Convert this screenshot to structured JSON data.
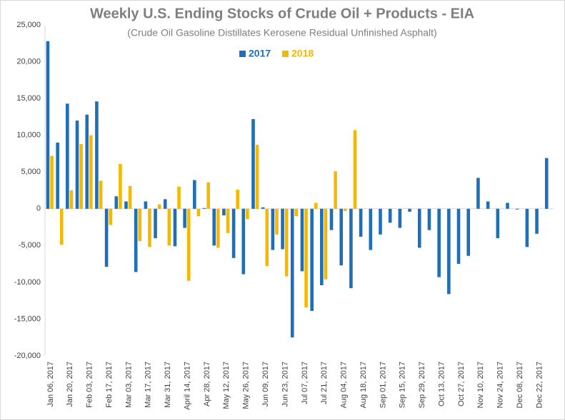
{
  "chart_data": {
    "type": "bar",
    "title": "Weekly U.S. Ending Stocks of Crude Oil + Products - EIA",
    "subtitle": "(Crude Oil Gasoline Distillates Kerosene Residual Unfinished Asphalt)",
    "categories": [
      "Jan 06, 2017",
      null,
      "Jan 20, 2017",
      null,
      "Feb 03, 2017",
      null,
      "Feb 17, 2017",
      null,
      "Mar 03, 2017",
      null,
      "Mar 17, 2017",
      null,
      "Mar 31, 2017",
      null,
      "April 14, 2017",
      null,
      "Apr 28, 2017",
      null,
      "May 12, 2017",
      null,
      "May 26, 2017",
      null,
      "Jun 09, 2017",
      null,
      "Jun 23, 2017",
      null,
      "Jul 07, 2017",
      null,
      "Jul 21, 2017",
      null,
      "Aug 04, 2017",
      null,
      "Aug 18, 2017",
      null,
      "Sep 01, 2017",
      null,
      "Sep 15, 2017",
      null,
      "Sep 29, 2017",
      null,
      "Oct 13, 2017",
      null,
      "Oct 27, 2017",
      null,
      "Nov 10, 2017",
      null,
      "Nov 24, 2017",
      null,
      "Dec 08, 2017",
      null,
      "Dec 22, 2017",
      null
    ],
    "series": [
      {
        "name": "2017",
        "color": "#1f6fb8",
        "values": [
          22800,
          9000,
          14300,
          12000,
          12800,
          14600,
          -7900,
          1700,
          1000,
          -8600,
          1000,
          -4000,
          1300,
          -5100,
          -2600,
          3900,
          100,
          -5000,
          -900,
          -6700,
          -8900,
          12200,
          200,
          -5600,
          -5500,
          -17500,
          -8500,
          -13900,
          -10400,
          -2900,
          -7700,
          -10800,
          -3800,
          -5600,
          -3500,
          -1900,
          -2600,
          -400,
          -5300,
          -2900,
          -9300,
          -11600,
          -7500,
          -6400,
          4200,
          1000,
          -4000,
          800,
          -100,
          -5200,
          -3400,
          6900
        ]
      },
      {
        "name": "2018",
        "color": "#f5b800",
        "values": [
          7200,
          -4900,
          2500,
          8800,
          10000,
          3800,
          -2200,
          6100,
          3100,
          -4400,
          -5200,
          600,
          -5000,
          3000,
          -9800,
          -1000,
          3600,
          -5300,
          -3300,
          2600,
          -1400,
          8700,
          -7800,
          -3500,
          -9200,
          -1000,
          -13400,
          800,
          -9600,
          5100,
          -300,
          10700,
          null,
          null,
          null,
          null,
          null,
          null,
          null,
          null,
          null,
          null,
          null,
          null,
          null,
          null,
          null,
          null,
          null,
          null,
          null,
          null
        ]
      }
    ],
    "ylim": [
      -20000,
      25000
    ],
    "yticks": [
      {
        "value": -20000,
        "label": "-20,000"
      },
      {
        "value": -15000,
        "label": "-15,000"
      },
      {
        "value": -10000,
        "label": "-10,000"
      },
      {
        "value": -5000,
        "label": "-5,000"
      },
      0,
      {
        "value": 5000,
        "label": "5,000"
      },
      {
        "value": 10000,
        "label": "10,000"
      },
      {
        "value": 15000,
        "label": "15,000"
      },
      {
        "value": 20000,
        "label": "20,000"
      },
      {
        "value": 25000,
        "label": "25,000"
      }
    ],
    "grid": false,
    "legend": "top"
  }
}
